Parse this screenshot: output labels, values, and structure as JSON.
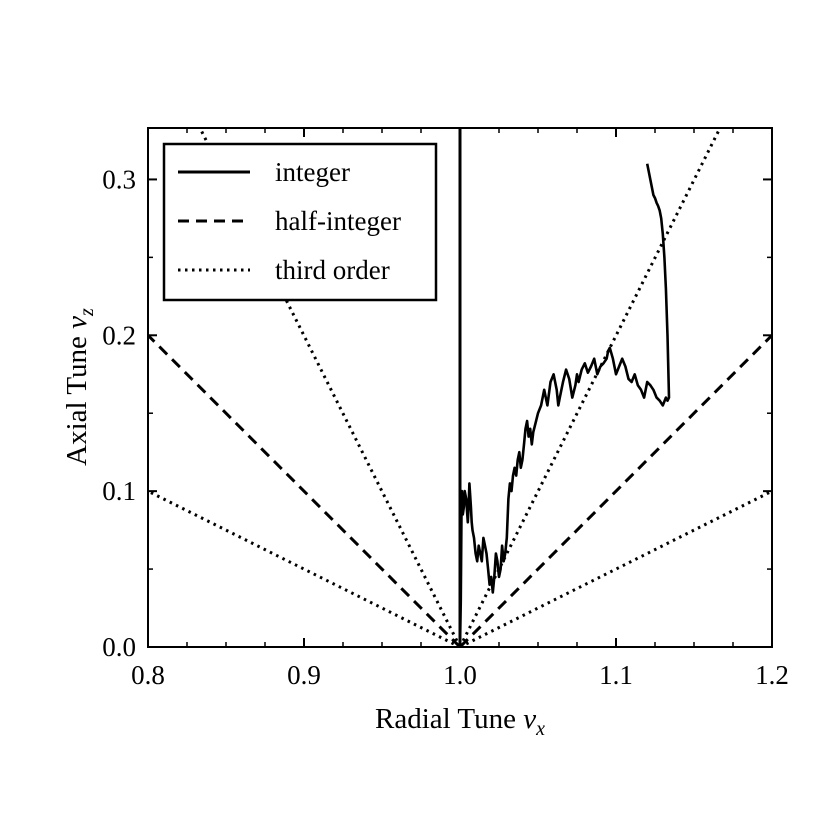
{
  "chart_data": {
    "type": "line",
    "xlabel": {
      "text": "Radial Tune ",
      "symbol": "ν",
      "subscript": "x"
    },
    "ylabel": {
      "text": "Axial Tune ",
      "symbol": "ν",
      "subscript": "z"
    },
    "xlim": [
      0.8,
      1.2
    ],
    "ylim": [
      0.0,
      0.333
    ],
    "xticks": [
      0.8,
      0.9,
      1.0,
      1.1,
      1.2
    ],
    "xtick_labels": [
      "0.8",
      "0.9",
      "1.0",
      "1.1",
      "1.2"
    ],
    "yticks": [
      0.0,
      0.1,
      0.2,
      0.3
    ],
    "ytick_labels": [
      "0.0",
      "0.1",
      "0.2",
      "0.3"
    ],
    "grid": false,
    "legend_position": "top-left",
    "legend": [
      {
        "label": "integer",
        "style": "solid"
      },
      {
        "label": "half-integer",
        "style": "dashed"
      },
      {
        "label": "third order",
        "style": "dotted"
      }
    ],
    "resonance_lines": [
      {
        "type": "integer",
        "style": "solid",
        "points": [
          [
            1.0,
            0.0
          ],
          [
            1.0,
            0.333
          ]
        ]
      },
      {
        "type": "half-integer",
        "style": "dashed",
        "points": [
          [
            1.0,
            0.0
          ],
          [
            0.8,
            0.2
          ]
        ]
      },
      {
        "type": "half-integer",
        "style": "dashed",
        "points": [
          [
            1.0,
            0.0
          ],
          [
            1.2,
            0.2
          ]
        ]
      },
      {
        "type": "third order",
        "style": "dotted",
        "points": [
          [
            1.0,
            0.0
          ],
          [
            0.8,
            0.1
          ]
        ]
      },
      {
        "type": "third order",
        "style": "dotted",
        "points": [
          [
            1.0,
            0.0
          ],
          [
            1.2,
            0.1
          ]
        ]
      },
      {
        "type": "third order",
        "style": "dotted",
        "points": [
          [
            1.0,
            0.0
          ],
          [
            0.8333,
            0.333
          ]
        ]
      },
      {
        "type": "third order",
        "style": "dotted",
        "points": [
          [
            1.0,
            0.0
          ],
          [
            1.1667,
            0.333
          ]
        ]
      }
    ],
    "series": [
      {
        "style": "solid",
        "x": [
          1.0,
          1.0005,
          1.001,
          1.0012,
          1.0018,
          1.0025,
          1.003,
          1.004,
          1.005,
          1.0055,
          1.006,
          1.007,
          1.0075,
          1.008,
          1.009,
          1.01,
          1.011,
          1.012,
          1.013,
          1.014,
          1.015,
          1.016,
          1.017,
          1.018,
          1.019,
          1.02,
          1.021,
          1.022,
          1.023,
          1.024,
          1.025,
          1.026,
          1.027,
          1.028,
          1.029,
          1.03,
          1.031,
          1.032,
          1.033,
          1.034,
          1.035,
          1.036,
          1.037,
          1.038,
          1.039,
          1.04,
          1.041,
          1.042,
          1.043,
          1.044,
          1.045,
          1.046,
          1.047,
          1.048,
          1.05,
          1.052,
          1.054,
          1.055,
          1.056,
          1.058,
          1.06,
          1.062,
          1.063,
          1.064,
          1.066,
          1.068,
          1.07,
          1.072,
          1.074,
          1.075,
          1.076,
          1.078,
          1.08,
          1.082,
          1.084,
          1.086,
          1.088,
          1.09,
          1.092,
          1.094,
          1.095,
          1.096,
          1.098,
          1.1,
          1.102,
          1.104,
          1.106,
          1.108,
          1.11,
          1.112,
          1.114,
          1.116,
          1.118,
          1.12,
          1.122,
          1.124,
          1.126,
          1.128,
          1.13,
          1.132,
          1.133,
          1.134,
          1.133,
          1.132,
          1.131,
          1.13,
          1.129,
          1.128,
          1.127,
          1.126,
          1.125,
          1.124,
          1.122,
          1.12
        ],
        "y": [
          0.0,
          0.03,
          0.095,
          0.1,
          0.085,
          0.09,
          0.1,
          0.095,
          0.08,
          0.09,
          0.105,
          0.09,
          0.08,
          0.075,
          0.07,
          0.06,
          0.055,
          0.065,
          0.06,
          0.055,
          0.07,
          0.065,
          0.06,
          0.05,
          0.04,
          0.045,
          0.035,
          0.045,
          0.06,
          0.055,
          0.045,
          0.05,
          0.065,
          0.055,
          0.06,
          0.07,
          0.095,
          0.105,
          0.1,
          0.11,
          0.115,
          0.11,
          0.12,
          0.125,
          0.115,
          0.12,
          0.13,
          0.14,
          0.145,
          0.135,
          0.14,
          0.13,
          0.138,
          0.142,
          0.15,
          0.155,
          0.165,
          0.16,
          0.155,
          0.17,
          0.175,
          0.165,
          0.155,
          0.16,
          0.17,
          0.178,
          0.172,
          0.16,
          0.168,
          0.175,
          0.17,
          0.178,
          0.182,
          0.176,
          0.18,
          0.185,
          0.175,
          0.18,
          0.182,
          0.185,
          0.19,
          0.192,
          0.185,
          0.175,
          0.18,
          0.185,
          0.18,
          0.172,
          0.17,
          0.175,
          0.168,
          0.165,
          0.16,
          0.17,
          0.168,
          0.165,
          0.16,
          0.158,
          0.155,
          0.16,
          0.158,
          0.16,
          0.2,
          0.23,
          0.25,
          0.265,
          0.275,
          0.28,
          0.283,
          0.285,
          0.288,
          0.29,
          0.3,
          0.31
        ]
      }
    ]
  }
}
